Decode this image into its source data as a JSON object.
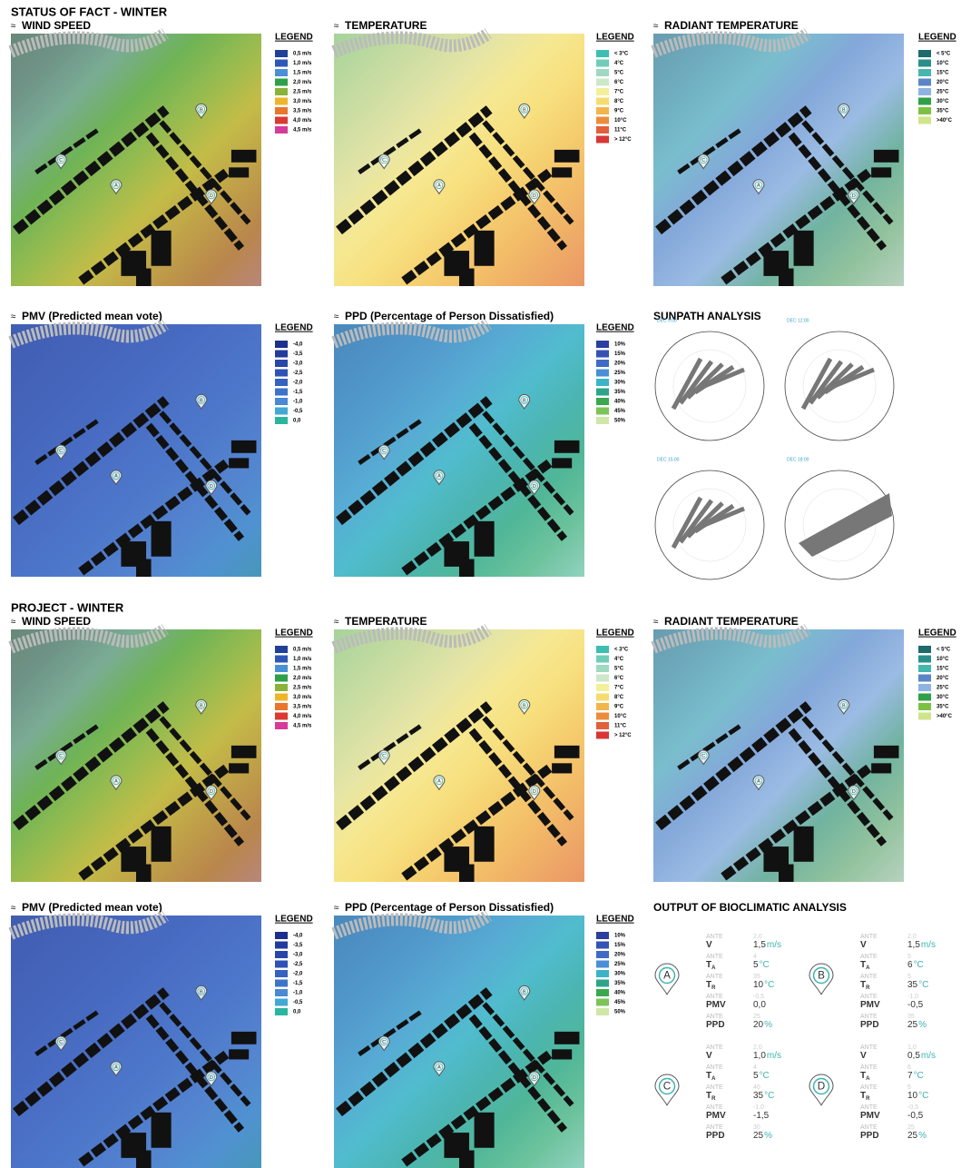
{
  "sections": [
    {
      "title": "STATUS OF FACT - WINTER",
      "panels": [
        {
          "kind": "map",
          "title": "WIND SPEED",
          "markers": [
            "A",
            "B",
            "C",
            "D"
          ],
          "legend": {
            "title": "LEGEND",
            "items": [
              {
                "label": "0,5 m/s",
                "color": "#1f3f99"
              },
              {
                "label": "1,0 m/s",
                "color": "#2f57b8"
              },
              {
                "label": "1,5 m/s",
                "color": "#4a90d6"
              },
              {
                "label": "2,0 m/s",
                "color": "#2ea04a"
              },
              {
                "label": "2,5 m/s",
                "color": "#8ab33a"
              },
              {
                "label": "3,0 m/s",
                "color": "#f0b429"
              },
              {
                "label": "3,5 m/s",
                "color": "#e8762b"
              },
              {
                "label": "4,0 m/s",
                "color": "#d93a32"
              },
              {
                "label": "4,5 m/s",
                "color": "#d63a9a"
              }
            ]
          }
        },
        {
          "kind": "map",
          "title": "TEMPERATURE",
          "markers": [
            "A",
            "B",
            "C",
            "D"
          ],
          "legend": {
            "title": "LEGEND",
            "items": [
              {
                "label": "< 3°C",
                "color": "#3cbfb0"
              },
              {
                "label": "4°C",
                "color": "#6fcdb8"
              },
              {
                "label": "5°C",
                "color": "#9fd9c2"
              },
              {
                "label": "6°C",
                "color": "#cde8c8"
              },
              {
                "label": "7°C",
                "color": "#f3ef9a"
              },
              {
                "label": "8°C",
                "color": "#f6dc6e"
              },
              {
                "label": "9°C",
                "color": "#f2b54c"
              },
              {
                "label": "10°C",
                "color": "#ec8d3c"
              },
              {
                "label": "11°C",
                "color": "#e2613a"
              },
              {
                "label": "> 12°C",
                "color": "#d93636"
              }
            ]
          }
        },
        {
          "kind": "map",
          "title": "RADIANT TEMPERATURE",
          "markers": [
            "A",
            "B",
            "C",
            "D"
          ],
          "legend": {
            "title": "LEGEND",
            "items": [
              {
                "label": "< 5°C",
                "color": "#1f6a6a"
              },
              {
                "label": "10°C",
                "color": "#2a8f8a"
              },
              {
                "label": "15°C",
                "color": "#44b8ad"
              },
              {
                "label": "20°C",
                "color": "#5a86c9"
              },
              {
                "label": "25°C",
                "color": "#8fb3e0"
              },
              {
                "label": "30°C",
                "color": "#2fa048"
              },
              {
                "label": "35°C",
                "color": "#7cc242"
              },
              {
                "label": ">40°C",
                "color": "#cfe58a"
              }
            ]
          }
        },
        {
          "kind": "map",
          "title": "PMV (Predicted mean vote)",
          "markers": [
            "A",
            "B",
            "C",
            "D"
          ],
          "legend": {
            "title": "LEGEND",
            "items": [
              {
                "label": "-4,0",
                "color": "#1c2f8c"
              },
              {
                "label": "-3,5",
                "color": "#223b9c"
              },
              {
                "label": "-3,0",
                "color": "#2945a8"
              },
              {
                "label": "-2,5",
                "color": "#2e52b5"
              },
              {
                "label": "-2,0",
                "color": "#3561c0"
              },
              {
                "label": "-1,5",
                "color": "#3d73c9"
              },
              {
                "label": "-1,0",
                "color": "#4a89d3"
              },
              {
                "label": "-0,5",
                "color": "#40a9d6"
              },
              {
                "label": "0,0",
                "color": "#2bb5a0"
              }
            ]
          }
        },
        {
          "kind": "map",
          "title": "PPD (Percentage of Person Dissatisfied)",
          "markers": [
            "A",
            "B",
            "C",
            "D"
          ],
          "legend": {
            "title": "LEGEND",
            "items": [
              {
                "label": "10%",
                "color": "#2b3f9e"
              },
              {
                "label": "15%",
                "color": "#3553b3"
              },
              {
                "label": "20%",
                "color": "#3f6bc6"
              },
              {
                "label": "25%",
                "color": "#4a8fd6"
              },
              {
                "label": "30%",
                "color": "#3cb4c8"
              },
              {
                "label": "35%",
                "color": "#2ea58a"
              },
              {
                "label": "40%",
                "color": "#3aa84e"
              },
              {
                "label": "45%",
                "color": "#7cc35a"
              },
              {
                "label": "50%",
                "color": "#cfe6a8"
              }
            ]
          }
        },
        {
          "kind": "sunpath",
          "title": "SUNPATH ANALYSIS",
          "views": [
            "DEC 9:00",
            "DEC 12:00",
            "DEC 15:00",
            "DEC 18:00"
          ]
        }
      ]
    },
    {
      "title": "PROJECT - WINTER",
      "panels": [
        {
          "kind": "map",
          "title": "WIND SPEED",
          "markers": [
            "A",
            "B",
            "C",
            "D"
          ],
          "legend": {
            "title": "LEGEND",
            "items": [
              {
                "label": "0,5 m/s",
                "color": "#1f3f99"
              },
              {
                "label": "1,0 m/s",
                "color": "#2f57b8"
              },
              {
                "label": "1,5 m/s",
                "color": "#4a90d6"
              },
              {
                "label": "2,0 m/s",
                "color": "#2ea04a"
              },
              {
                "label": "2,5 m/s",
                "color": "#8ab33a"
              },
              {
                "label": "3,0 m/s",
                "color": "#f0b429"
              },
              {
                "label": "3,5 m/s",
                "color": "#e8762b"
              },
              {
                "label": "4,0 m/s",
                "color": "#d93a32"
              },
              {
                "label": "4,5 m/s",
                "color": "#d63a9a"
              }
            ]
          }
        },
        {
          "kind": "map",
          "title": "TEMPERATURE",
          "markers": [
            "A",
            "B",
            "C",
            "D"
          ],
          "legend": {
            "title": "LEGEND",
            "items": [
              {
                "label": "< 3°C",
                "color": "#3cbfb0"
              },
              {
                "label": "4°C",
                "color": "#6fcdb8"
              },
              {
                "label": "5°C",
                "color": "#9fd9c2"
              },
              {
                "label": "6°C",
                "color": "#cde8c8"
              },
              {
                "label": "7°C",
                "color": "#f3ef9a"
              },
              {
                "label": "8°C",
                "color": "#f6dc6e"
              },
              {
                "label": "9°C",
                "color": "#f2b54c"
              },
              {
                "label": "10°C",
                "color": "#ec8d3c"
              },
              {
                "label": "11°C",
                "color": "#e2613a"
              },
              {
                "label": "> 12°C",
                "color": "#d93636"
              }
            ]
          }
        },
        {
          "kind": "map",
          "title": "RADIANT TEMPERATURE",
          "markers": [
            "A",
            "B",
            "C",
            "D"
          ],
          "legend": {
            "title": "LEGEND",
            "items": [
              {
                "label": "< 5°C",
                "color": "#1f6a6a"
              },
              {
                "label": "10°C",
                "color": "#2a8f8a"
              },
              {
                "label": "15°C",
                "color": "#44b8ad"
              },
              {
                "label": "20°C",
                "color": "#5a86c9"
              },
              {
                "label": "25°C",
                "color": "#8fb3e0"
              },
              {
                "label": "30°C",
                "color": "#2fa048"
              },
              {
                "label": "35°C",
                "color": "#7cc242"
              },
              {
                "label": ">40°C",
                "color": "#cfe58a"
              }
            ]
          }
        },
        {
          "kind": "map",
          "title": "PMV (Predicted mean vote)",
          "markers": [
            "A",
            "B",
            "C",
            "D"
          ],
          "legend": {
            "title": "LEGEND",
            "items": [
              {
                "label": "-4,0",
                "color": "#1c2f8c"
              },
              {
                "label": "-3,5",
                "color": "#223b9c"
              },
              {
                "label": "-3,0",
                "color": "#2945a8"
              },
              {
                "label": "-2,5",
                "color": "#2e52b5"
              },
              {
                "label": "-2,0",
                "color": "#3561c0"
              },
              {
                "label": "-1,5",
                "color": "#3d73c9"
              },
              {
                "label": "-1,0",
                "color": "#4a89d3"
              },
              {
                "label": "-0,5",
                "color": "#40a9d6"
              },
              {
                "label": "0,0",
                "color": "#2bb5a0"
              }
            ]
          }
        },
        {
          "kind": "map",
          "title": "PPD (Percentage of Person Dissatisfied)",
          "markers": [
            "A",
            "B",
            "C",
            "D"
          ],
          "legend": {
            "title": "LEGEND",
            "items": [
              {
                "label": "10%",
                "color": "#2b3f9e"
              },
              {
                "label": "15%",
                "color": "#3553b3"
              },
              {
                "label": "20%",
                "color": "#3f6bc6"
              },
              {
                "label": "25%",
                "color": "#4a8fd6"
              },
              {
                "label": "30%",
                "color": "#3cb4c8"
              },
              {
                "label": "35%",
                "color": "#2ea58a"
              },
              {
                "label": "40%",
                "color": "#3aa84e"
              },
              {
                "label": "45%",
                "color": "#7cc35a"
              },
              {
                "label": "50%",
                "color": "#cfe6a8"
              }
            ]
          }
        },
        {
          "kind": "output",
          "title": "OUTPUT OF BIOCLIMATIC ANALYSIS",
          "ante_label": "ANTE",
          "points": [
            {
              "marker": "A",
              "rows": [
                {
                  "label": "V",
                  "ante": "2,0",
                  "value": "1,5",
                  "unit": "m/s"
                },
                {
                  "label": "T",
                  "sub": "A",
                  "ante": "4",
                  "value": "5",
                  "unit": "°C"
                },
                {
                  "label": "T",
                  "sub": "R",
                  "ante": "35",
                  "value": "10",
                  "unit": "°C"
                },
                {
                  "label": "PMV",
                  "ante": "-0,5",
                  "value": "0,0"
                },
                {
                  "label": "PPD",
                  "ante": "25",
                  "value": "20",
                  "unit": "%"
                }
              ]
            },
            {
              "marker": "B",
              "rows": [
                {
                  "label": "V",
                  "ante": "2,0",
                  "value": "1,5",
                  "unit": "m/s"
                },
                {
                  "label": "T",
                  "sub": "A",
                  "ante": "5",
                  "value": "6",
                  "unit": "°C"
                },
                {
                  "label": "T",
                  "sub": "R",
                  "ante": "5",
                  "value": "35",
                  "unit": "°C"
                },
                {
                  "label": "PMV",
                  "ante": "-1,0",
                  "value": "-0,5"
                },
                {
                  "label": "PPD",
                  "ante": "35",
                  "value": "25",
                  "unit": "%"
                }
              ]
            },
            {
              "marker": "C",
              "rows": [
                {
                  "label": "V",
                  "ante": "2,0",
                  "value": "1,0",
                  "unit": "m/s"
                },
                {
                  "label": "T",
                  "sub": "A",
                  "ante": "4",
                  "value": "5",
                  "unit": "°C"
                },
                {
                  "label": "T",
                  "sub": "R",
                  "ante": "40",
                  "value": "35",
                  "unit": "°C"
                },
                {
                  "label": "PMV",
                  "ante": "-1,0",
                  "value": "-1,5"
                },
                {
                  "label": "PPD",
                  "ante": "30",
                  "value": "25",
                  "unit": "%"
                }
              ]
            },
            {
              "marker": "D",
              "rows": [
                {
                  "label": "V",
                  "ante": "1,0",
                  "value": "0,5",
                  "unit": "m/s"
                },
                {
                  "label": "T",
                  "sub": "A",
                  "ante": "6",
                  "value": "7",
                  "unit": "°C"
                },
                {
                  "label": "T",
                  "sub": "R",
                  "ante": "5",
                  "value": "10",
                  "unit": "°C"
                },
                {
                  "label": "PMV",
                  "ante": "-0,5",
                  "value": "-0,5"
                },
                {
                  "label": "PPD",
                  "ante": "25",
                  "value": "25",
                  "unit": "%"
                }
              ]
            }
          ]
        }
      ]
    }
  ]
}
